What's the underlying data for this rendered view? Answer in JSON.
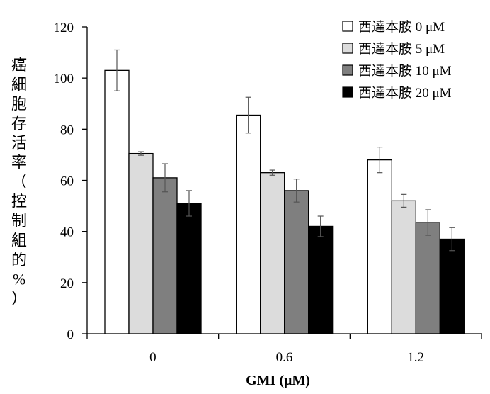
{
  "chart_data": {
    "type": "bar",
    "title": "",
    "xlabel": "GMI (μM)",
    "ylabel": "癌細胞存活率（控制組的%）",
    "ylim": [
      0,
      120
    ],
    "yticks": [
      0,
      20,
      40,
      60,
      80,
      100,
      120
    ],
    "ytick_labels": [
      "0",
      "20",
      "40",
      "60",
      "80",
      "100",
      "120"
    ],
    "categories": [
      "0",
      "0.6",
      "1.2"
    ],
    "legend_position": "top-right",
    "series": [
      {
        "name": "西達本胺 0 μM",
        "color": "#ffffff",
        "values": [
          103,
          85.5,
          68
        ],
        "errors": [
          8,
          7,
          5
        ]
      },
      {
        "name": "西達本胺 5 μM",
        "color": "#dcdcdc",
        "values": [
          70.5,
          63,
          52
        ],
        "errors": [
          0.7,
          1,
          2.5
        ]
      },
      {
        "name": "西達本胺 10 μM",
        "color": "#7f7f7f",
        "values": [
          61,
          56,
          43.5
        ],
        "errors": [
          5.5,
          4.5,
          5
        ]
      },
      {
        "name": "西達本胺 20 μM",
        "color": "#000000",
        "values": [
          51,
          42,
          37
        ],
        "errors": [
          5,
          4,
          4.5
        ]
      }
    ]
  }
}
